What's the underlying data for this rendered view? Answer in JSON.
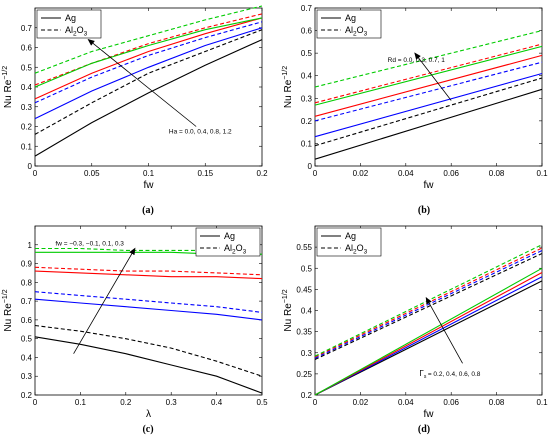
{
  "chart_data": [
    {
      "panel": "(a)",
      "type": "line",
      "xlabel": "fw",
      "ylabel": "Nu Re",
      "ylabel_sup": "−1/2",
      "xlim": [
        0,
        0.2
      ],
      "ylim": [
        0,
        0.8
      ],
      "xticks": [
        "0",
        "0.05",
        "0.1",
        "0.15",
        "0.2"
      ],
      "xtick_values": [
        0,
        0.05,
        0.1,
        0.15,
        0.2
      ],
      "yticks": [
        "0",
        "0.1",
        "0.2",
        "0.3",
        "0.4",
        "0.5",
        "0.6",
        "0.7"
      ],
      "ytick_values": [
        0,
        0.1,
        0.2,
        0.3,
        0.4,
        0.5,
        0.6,
        0.7
      ],
      "legend": {
        "position": "top-left",
        "entries": [
          {
            "label": "Ag",
            "style": "solid"
          },
          {
            "label": "Al",
            "sub": "2",
            "label2": "O",
            "sub2": "3",
            "style": "dashed"
          }
        ]
      },
      "annotation": {
        "text": "Ha = 0.0, 0.4, 0.8, 1.2",
        "arrow_from": [
          0.142,
          0.2
        ],
        "arrow_to": [
          0.047,
          0.64
        ],
        "text_at": [
          0.118,
          0.165
        ]
      },
      "x": [
        0,
        0.05,
        0.1,
        0.15,
        0.2
      ],
      "series": [
        {
          "color": "#000000",
          "style": "solid",
          "values": [
            0.05,
            0.22,
            0.37,
            0.51,
            0.64
          ]
        },
        {
          "color": "#000000",
          "style": "dashed",
          "values": [
            0.16,
            0.32,
            0.47,
            0.58,
            0.69
          ]
        },
        {
          "color": "#0000ff",
          "style": "solid",
          "values": [
            0.24,
            0.38,
            0.5,
            0.61,
            0.7
          ]
        },
        {
          "color": "#0000ff",
          "style": "dashed",
          "values": [
            0.32,
            0.45,
            0.56,
            0.65,
            0.73
          ]
        },
        {
          "color": "#ff0000",
          "style": "solid",
          "values": [
            0.34,
            0.47,
            0.58,
            0.67,
            0.75
          ]
        },
        {
          "color": "#ff0000",
          "style": "dashed",
          "values": [
            0.41,
            0.52,
            0.62,
            0.7,
            0.77
          ]
        },
        {
          "color": "#00cc00",
          "style": "solid",
          "values": [
            0.4,
            0.52,
            0.61,
            0.69,
            0.75
          ]
        },
        {
          "color": "#00cc00",
          "style": "dashed",
          "values": [
            0.47,
            0.58,
            0.66,
            0.74,
            0.81
          ]
        }
      ]
    },
    {
      "panel": "(b)",
      "type": "line",
      "xlabel": "fw",
      "ylabel": "Nu Re",
      "ylabel_sup": "−1/2",
      "xlim": [
        0,
        0.1
      ],
      "ylim": [
        0,
        0.7
      ],
      "xticks": [
        "0",
        "0.02",
        "0.04",
        "0.06",
        "0.08",
        "0.1"
      ],
      "xtick_values": [
        0,
        0.02,
        0.04,
        0.06,
        0.08,
        0.1
      ],
      "yticks": [
        "0",
        "0.1",
        "0.2",
        "0.3",
        "0.4",
        "0.5",
        "0.6",
        "0.7"
      ],
      "ytick_values": [
        0,
        0.1,
        0.2,
        0.3,
        0.4,
        0.5,
        0.6,
        0.7
      ],
      "legend": {
        "position": "top-left",
        "entries": [
          {
            "label": "Ag",
            "style": "solid"
          },
          {
            "label": "Al",
            "sub": "2",
            "label2": "O",
            "sub2": "3",
            "style": "dashed"
          }
        ]
      },
      "annotation": {
        "text": "Rd = 0.0, 0.3, 0.7, 1",
        "arrow_from": [
          0.06,
          0.29
        ],
        "arrow_to": [
          0.044,
          0.5
        ],
        "text_at": [
          0.032,
          0.46
        ]
      },
      "x": [
        0,
        0.1
      ],
      "series": [
        {
          "color": "#000000",
          "style": "solid",
          "values": [
            0.03,
            0.34
          ]
        },
        {
          "color": "#000000",
          "style": "dashed",
          "values": [
            0.09,
            0.39
          ]
        },
        {
          "color": "#0000ff",
          "style": "solid",
          "values": [
            0.13,
            0.41
          ]
        },
        {
          "color": "#0000ff",
          "style": "dashed",
          "values": [
            0.2,
            0.46
          ]
        },
        {
          "color": "#ff0000",
          "style": "solid",
          "values": [
            0.22,
            0.49
          ]
        },
        {
          "color": "#ff0000",
          "style": "dashed",
          "values": [
            0.28,
            0.54
          ]
        },
        {
          "color": "#00cc00",
          "style": "solid",
          "values": [
            0.27,
            0.53
          ]
        },
        {
          "color": "#00cc00",
          "style": "dashed",
          "values": [
            0.35,
            0.6
          ]
        }
      ]
    },
    {
      "panel": "(c)",
      "type": "line",
      "xlabel": "λ",
      "ylabel": "Nu Re",
      "ylabel_sup": "−1/2",
      "xlim": [
        0,
        0.5
      ],
      "ylim": [
        0.2,
        1.1
      ],
      "xticks": [
        "0",
        "0.1",
        "0.2",
        "0.3",
        "0.4",
        "0.5"
      ],
      "xtick_values": [
        0,
        0.1,
        0.2,
        0.3,
        0.4,
        0.5
      ],
      "yticks": [
        "0.2",
        "0.3",
        "0.4",
        "0.5",
        "0.6",
        "0.7",
        "0.8",
        "0.9",
        "1"
      ],
      "ytick_values": [
        0.2,
        0.3,
        0.4,
        0.5,
        0.6,
        0.7,
        0.8,
        0.9,
        1.0
      ],
      "legend": {
        "position": "top-right",
        "entries": [
          {
            "label": "Ag",
            "style": "solid"
          },
          {
            "label": "Al",
            "sub": "2",
            "label2": "O",
            "sub2": "3",
            "style": "dashed"
          }
        ]
      },
      "annotation": {
        "text": "fw = −0.3, −0.1, 0.1, 0.3",
        "arrow_from": [
          0.085,
          0.42
        ],
        "arrow_to": [
          0.22,
          0.98
        ],
        "text_at": [
          0.045,
          0.995
        ]
      },
      "x": [
        0,
        0.1,
        0.2,
        0.3,
        0.4,
        0.5
      ],
      "series": [
        {
          "color": "#000000",
          "style": "solid",
          "values": [
            0.51,
            0.47,
            0.42,
            0.36,
            0.3,
            0.21
          ]
        },
        {
          "color": "#000000",
          "style": "dashed",
          "values": [
            0.57,
            0.54,
            0.5,
            0.45,
            0.38,
            0.3
          ]
        },
        {
          "color": "#0000ff",
          "style": "solid",
          "values": [
            0.71,
            0.69,
            0.67,
            0.65,
            0.63,
            0.6
          ]
        },
        {
          "color": "#0000ff",
          "style": "dashed",
          "values": [
            0.75,
            0.73,
            0.71,
            0.69,
            0.67,
            0.64
          ]
        },
        {
          "color": "#ff0000",
          "style": "solid",
          "values": [
            0.86,
            0.85,
            0.84,
            0.83,
            0.83,
            0.82
          ]
        },
        {
          "color": "#ff0000",
          "style": "dashed",
          "values": [
            0.88,
            0.87,
            0.86,
            0.86,
            0.85,
            0.84
          ]
        },
        {
          "color": "#00cc00",
          "style": "solid",
          "values": [
            0.96,
            0.96,
            0.96,
            0.96,
            0.95,
            0.95
          ]
        },
        {
          "color": "#00cc00",
          "style": "dashed",
          "values": [
            0.98,
            0.98,
            0.97,
            0.97,
            0.97,
            0.96
          ]
        }
      ]
    },
    {
      "panel": "(d)",
      "type": "line",
      "xlabel": "fw",
      "ylabel": "Nu Re",
      "ylabel_sup": "−1/2",
      "xlim": [
        0,
        0.1
      ],
      "ylim": [
        0.2,
        0.6
      ],
      "xticks": [
        "0",
        "0.02",
        "0.04",
        "0.06",
        "0.08",
        "0.1"
      ],
      "xtick_values": [
        0,
        0.02,
        0.04,
        0.06,
        0.08,
        0.1
      ],
      "yticks": [
        "0.2",
        "0.25",
        "0.3",
        "0.35",
        "0.4",
        "0.45",
        "0.5",
        "0.55"
      ],
      "ytick_values": [
        0.2,
        0.25,
        0.3,
        0.35,
        0.4,
        0.45,
        0.5,
        0.55
      ],
      "legend": {
        "position": "top-left",
        "entries": [
          {
            "label": "Ag",
            "style": "solid"
          },
          {
            "label": "Al",
            "sub": "2",
            "label2": "O",
            "sub2": "3",
            "style": "dashed"
          }
        ]
      },
      "annotation": {
        "text": "= 0.2, 0.4, 0.6, 0.8",
        "prefix": "Γ",
        "prefix_sub": "s",
        "arrow_from": [
          0.065,
          0.275
        ],
        "arrow_to": [
          0.049,
          0.43
        ],
        "text_at": [
          0.046,
          0.245
        ]
      },
      "x": [
        0,
        0.1
      ],
      "series": [
        {
          "color": "#000000",
          "style": "solid",
          "values": [
            0.2,
            0.47
          ]
        },
        {
          "color": "#0000ff",
          "style": "solid",
          "values": [
            0.2,
            0.48
          ]
        },
        {
          "color": "#ff0000",
          "style": "solid",
          "values": [
            0.2,
            0.49
          ]
        },
        {
          "color": "#00cc00",
          "style": "solid",
          "values": [
            0.2,
            0.5
          ]
        },
        {
          "color": "#000000",
          "style": "dashed",
          "values": [
            0.284,
            0.535
          ]
        },
        {
          "color": "#0000ff",
          "style": "dashed",
          "values": [
            0.287,
            0.542
          ]
        },
        {
          "color": "#ff0000",
          "style": "dashed",
          "values": [
            0.29,
            0.548
          ]
        },
        {
          "color": "#00cc00",
          "style": "dashed",
          "values": [
            0.292,
            0.556
          ]
        }
      ]
    }
  ]
}
